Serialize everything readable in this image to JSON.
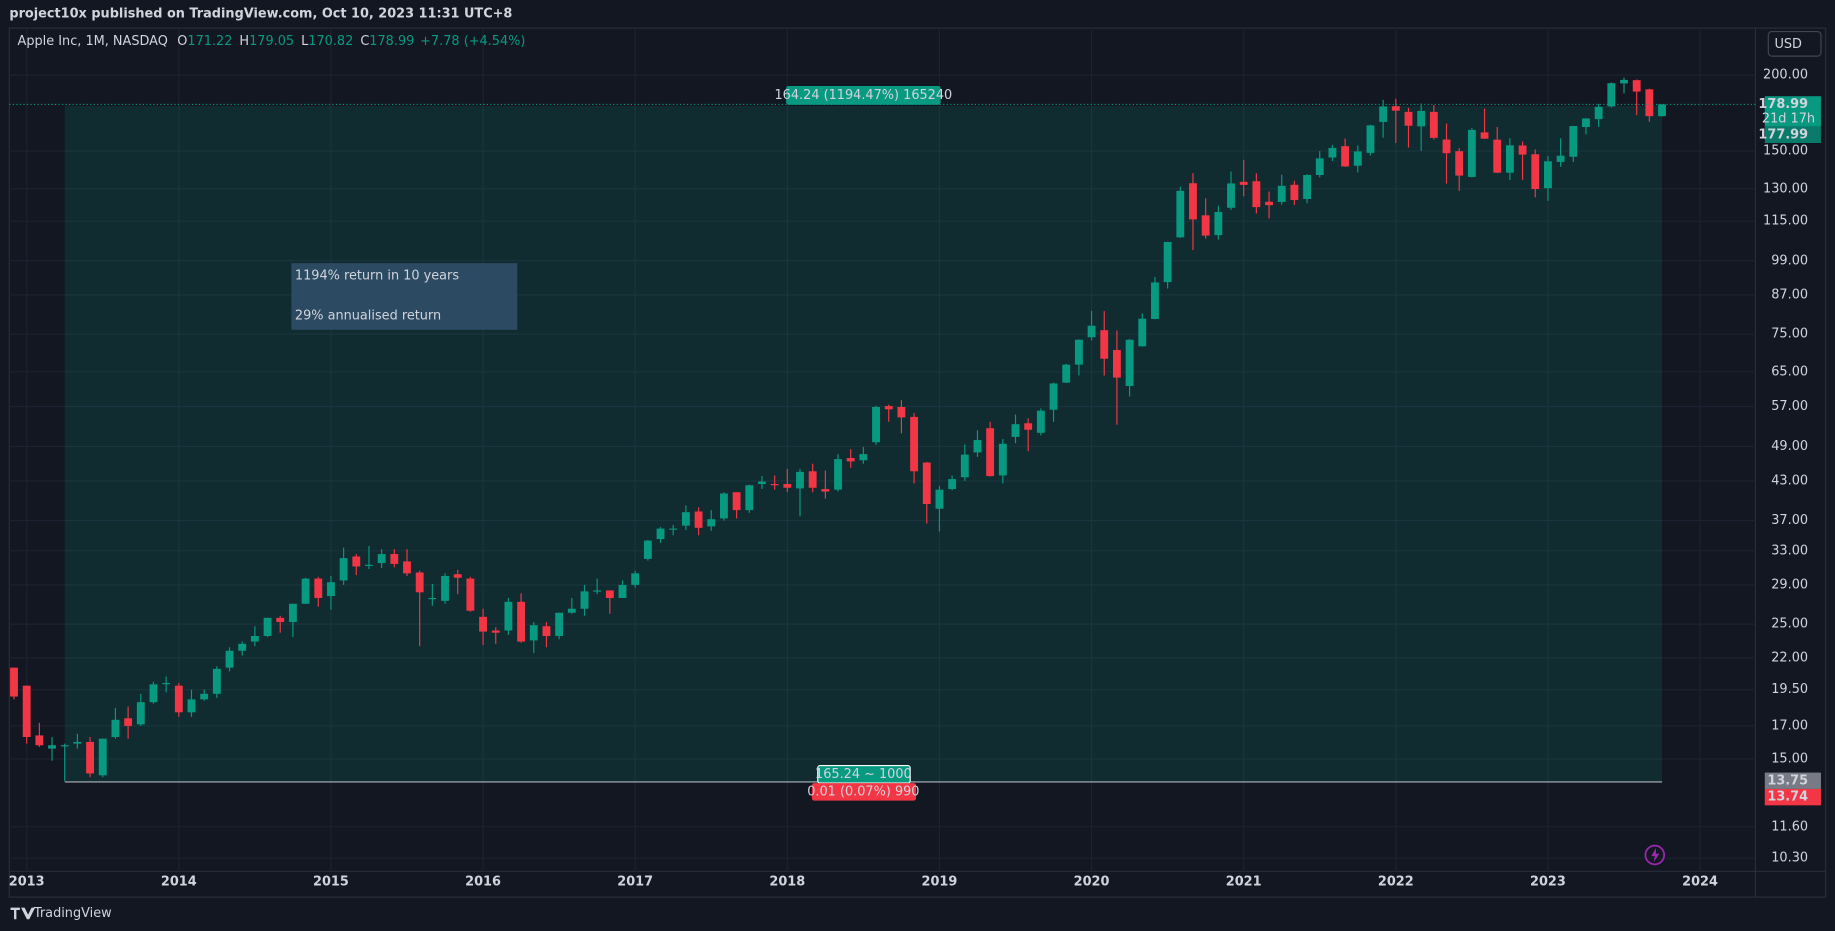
{
  "header": "project10x published on TradingView.com, Oct 10, 2023 11:31 UTC+8",
  "legend": {
    "symbol": "Apple Inc, 1M, NASDAQ",
    "o": "O",
    "h": "H",
    "l": "L",
    "c": "C",
    "change": "+7.78 (+4.54%)"
  },
  "currency": "USD",
  "countdown": "21d 17h",
  "brand": "TradingView",
  "note": [
    "1194% return in 10 years",
    "29% annualised return"
  ],
  "measure": {
    "start": "2013-04",
    "end": "2023-10",
    "low": 13.75,
    "high": 177.99,
    "label": "164.24 (1194.47%) 165240",
    "range_label": "165.24 ~ 1000"
  },
  "measure_small": {
    "low": 13.74,
    "label": "0.01 (0.07%) 990"
  },
  "chart_data": {
    "type": "candlestick",
    "log_scale": true,
    "grid": true,
    "up_color": "#089981",
    "down_color": "#f23645",
    "xlim": [
      "2012-11-20",
      "2024-05-12"
    ],
    "ylim": [
      9.8,
      239
    ],
    "xticks": [
      {
        "value": "2013-01",
        "label": "2013"
      },
      {
        "value": "2014-01",
        "label": "2014"
      },
      {
        "value": "2015-01",
        "label": "2015"
      },
      {
        "value": "2016-01",
        "label": "2016"
      },
      {
        "value": "2017-01",
        "label": "2017"
      },
      {
        "value": "2018-01",
        "label": "2018"
      },
      {
        "value": "2019-01",
        "label": "2019"
      },
      {
        "value": "2020-01",
        "label": "2020"
      },
      {
        "value": "2021-01",
        "label": "2021"
      },
      {
        "value": "2022-01",
        "label": "2022"
      },
      {
        "value": "2023-01",
        "label": "2023"
      },
      {
        "value": "2024-01",
        "label": "2024"
      }
    ],
    "yticks": [
      {
        "value": 200,
        "label": "200.00"
      },
      {
        "value": 150,
        "label": "150.00"
      },
      {
        "value": 130,
        "label": "130.00"
      },
      {
        "value": 115,
        "label": "115.00"
      },
      {
        "value": 99,
        "label": "99.00"
      },
      {
        "value": 87,
        "label": "87.00"
      },
      {
        "value": 75,
        "label": "75.00"
      },
      {
        "value": 65,
        "label": "65.00"
      },
      {
        "value": 57,
        "label": "57.00"
      },
      {
        "value": 49,
        "label": "49.00"
      },
      {
        "value": 43,
        "label": "43.00"
      },
      {
        "value": 37,
        "label": "37.00"
      },
      {
        "value": 33,
        "label": "33.00"
      },
      {
        "value": 29,
        "label": "29.00"
      },
      {
        "value": 25,
        "label": "25.00"
      },
      {
        "value": 22,
        "label": "22.00"
      },
      {
        "value": 19.5,
        "label": "19.50"
      },
      {
        "value": 17,
        "label": "17.00"
      },
      {
        "value": 15,
        "label": "15.00"
      },
      {
        "value": 11.6,
        "label": "11.60"
      },
      {
        "value": 10.3,
        "label": "10.30"
      }
    ],
    "x": [
      "2012-12",
      "2013-01",
      "2013-02",
      "2013-03",
      "2013-04",
      "2013-05",
      "2013-06",
      "2013-07",
      "2013-08",
      "2013-09",
      "2013-10",
      "2013-11",
      "2013-12",
      "2014-01",
      "2014-02",
      "2014-03",
      "2014-04",
      "2014-05",
      "2014-06",
      "2014-07",
      "2014-08",
      "2014-09",
      "2014-10",
      "2014-11",
      "2014-12",
      "2015-01",
      "2015-02",
      "2015-03",
      "2015-04",
      "2015-05",
      "2015-06",
      "2015-07",
      "2015-08",
      "2015-09",
      "2015-10",
      "2015-11",
      "2015-12",
      "2016-01",
      "2016-02",
      "2016-03",
      "2016-04",
      "2016-05",
      "2016-06",
      "2016-07",
      "2016-08",
      "2016-09",
      "2016-10",
      "2016-11",
      "2016-12",
      "2017-01",
      "2017-02",
      "2017-03",
      "2017-04",
      "2017-05",
      "2017-06",
      "2017-07",
      "2017-08",
      "2017-09",
      "2017-10",
      "2017-11",
      "2017-12",
      "2018-01",
      "2018-02",
      "2018-03",
      "2018-04",
      "2018-05",
      "2018-06",
      "2018-07",
      "2018-08",
      "2018-09",
      "2018-10",
      "2018-11",
      "2018-12",
      "2019-01",
      "2019-02",
      "2019-03",
      "2019-04",
      "2019-05",
      "2019-06",
      "2019-07",
      "2019-08",
      "2019-09",
      "2019-10",
      "2019-11",
      "2019-12",
      "2020-01",
      "2020-02",
      "2020-03",
      "2020-04",
      "2020-05",
      "2020-06",
      "2020-07",
      "2020-08",
      "2020-09",
      "2020-10",
      "2020-11",
      "2020-12",
      "2021-01",
      "2021-02",
      "2021-03",
      "2021-04",
      "2021-05",
      "2021-06",
      "2021-07",
      "2021-08",
      "2021-09",
      "2021-10",
      "2021-11",
      "2021-12",
      "2022-01",
      "2022-02",
      "2022-03",
      "2022-04",
      "2022-05",
      "2022-06",
      "2022-07",
      "2022-08",
      "2022-09",
      "2022-10",
      "2022-11",
      "2022-12",
      "2023-01",
      "2023-02",
      "2023-03",
      "2023-04",
      "2023-05",
      "2023-06",
      "2023-07",
      "2023-08",
      "2023-09",
      "2023-10"
    ],
    "open": [
      21.2,
      19.8,
      16.4,
      15.6,
      15.8,
      15.9,
      16.0,
      14.1,
      16.3,
      17.5,
      17.1,
      18.6,
      20.0,
      19.8,
      17.9,
      18.8,
      19.2,
      21.2,
      22.6,
      23.4,
      23.9,
      25.6,
      25.2,
      27.0,
      29.7,
      27.8,
      29.5,
      32.3,
      31.2,
      31.5,
      32.6,
      31.7,
      30.4,
      27.5,
      27.3,
      30.2,
      29.7,
      25.7,
      24.4,
      24.4,
      27.2,
      23.5,
      24.8,
      23.9,
      26.1,
      26.5,
      28.4,
      28.4,
      27.6,
      29.0,
      32.0,
      34.5,
      35.9,
      36.3,
      38.3,
      36.2,
      37.3,
      41.2,
      38.5,
      42.5,
      42.5,
      42.5,
      41.8,
      44.6,
      41.7,
      41.6,
      46.9,
      46.5,
      49.8,
      57.1,
      56.9,
      54.8,
      46.1,
      38.7,
      41.7,
      43.6,
      47.9,
      52.5,
      43.9,
      50.8,
      53.5,
      51.6,
      56.3,
      62.4,
      66.8,
      74.1,
      76.1,
      70.6,
      61.6,
      71.6,
      79.4,
      91.3,
      108.2,
      132.8,
      117.6,
      109.1,
      121.0,
      133.5,
      133.8,
      123.8,
      123.7,
      132.0,
      125.1,
      137.0,
      146.4,
      152.8,
      141.9,
      148.99,
      167.5,
      177.8,
      174.0,
      164.7,
      174.0,
      156.7,
      149.9,
      136.0,
      161.0,
      156.6,
      138.2,
      153.2,
      148.2,
      130.3,
      143.97,
      146.8,
      164.3,
      169.3,
      177.7,
      193.8,
      196.2,
      189.5,
      171.22
    ],
    "high": [
      21.2,
      19.8,
      17.2,
      16.3,
      15.9,
      16.5,
      16.3,
      16.2,
      18.2,
      18.3,
      19.2,
      20.1,
      20.5,
      20.0,
      19.5,
      19.5,
      21.3,
      22.9,
      23.4,
      24.8,
      25.6,
      25.8,
      27.0,
      29.8,
      29.9,
      30.0,
      33.4,
      32.6,
      33.6,
      33.2,
      33.2,
      33.2,
      30.6,
      29.1,
      30.3,
      30.7,
      29.9,
      26.5,
      24.7,
      27.6,
      28.1,
      25.2,
      25.2,
      26.1,
      27.6,
      29.0,
      29.7,
      28.4,
      29.5,
      30.6,
      34.4,
      36.1,
      36.4,
      39.2,
      38.9,
      38.5,
      41.2,
      41.2,
      42.4,
      43.8,
      43.9,
      45.0,
      45.0,
      45.9,
      44.7,
      47.6,
      48.5,
      48.9,
      57.2,
      57.4,
      58.4,
      55.6,
      46.2,
      42.2,
      43.9,
      49.4,
      52.1,
      53.8,
      50.4,
      55.3,
      54.5,
      56.6,
      62.4,
      67.0,
      73.5,
      81.9,
      81.8,
      76.0,
      73.6,
      81.1,
      93.1,
      106.4,
      131.0,
      137.98,
      125.4,
      121.99,
      138.8,
      145.1,
      137.9,
      128.7,
      137.1,
      134.1,
      137.4,
      150.0,
      153.5,
      157.3,
      153.2,
      165.7,
      182.1,
      182.9,
      176.7,
      179.6,
      178.5,
      166.5,
      151.7,
      163.6,
      176.2,
      164.3,
      157.5,
      155.5,
      150.9,
      147.2,
      157.4,
      165.0,
      169.9,
      179.4,
      194.5,
      198.2,
      196.7,
      189.98,
      179.05
    ],
    "low": [
      18.8,
      15.9,
      15.7,
      14.9,
      13.8,
      15.6,
      14.0,
      14.0,
      16.2,
      16.2,
      17.0,
      18.5,
      19.3,
      17.6,
      17.6,
      18.7,
      18.9,
      20.9,
      22.2,
      23.0,
      23.8,
      24.2,
      23.8,
      27.0,
      26.7,
      26.4,
      29.0,
      30.1,
      30.8,
      30.9,
      31.0,
      30.0,
      23.0,
      26.8,
      27.0,
      28.0,
      26.2,
      23.1,
      23.2,
      24.0,
      23.3,
      22.4,
      22.9,
      23.6,
      26.0,
      25.8,
      28.0,
      26.0,
      27.6,
      28.7,
      31.8,
      34.0,
      35.0,
      35.7,
      35.0,
      35.6,
      37.0,
      37.3,
      38.1,
      41.7,
      41.6,
      41.2,
      37.6,
      41.2,
      40.2,
      41.3,
      45.2,
      45.9,
      49.3,
      53.8,
      51.5,
      42.6,
      36.6,
      35.5,
      41.5,
      43.0,
      47.1,
      43.7,
      42.6,
      49.6,
      48.1,
      51.1,
      53.8,
      62.3,
      64.1,
      73.2,
      64.1,
      53.2,
      59.2,
      71.5,
      79.3,
      89.1,
      107.9,
      103.1,
      107.7,
      107.3,
      120.0,
      126.4,
      118.4,
      116.2,
      122.5,
      122.3,
      123.1,
      135.8,
      144.5,
      141.3,
      138.3,
      147.5,
      157.8,
      154.7,
      152.0,
      150.1,
      156.7,
      132.6,
      129.0,
      135.7,
      157.1,
      138.0,
      134.4,
      134.4,
      125.9,
      124.2,
      141.3,
      143.9,
      159.8,
      164.3,
      176.9,
      186.6,
      171.96,
      167.6,
      170.82
    ],
    "close": [
      19.0,
      16.3,
      15.8,
      15.8,
      15.8,
      16.0,
      14.2,
      16.2,
      17.4,
      17.0,
      18.6,
      19.9,
      20.0,
      17.9,
      18.8,
      19.2,
      21.1,
      22.6,
      23.2,
      23.9,
      25.6,
      25.2,
      27.0,
      29.7,
      27.6,
      29.3,
      32.1,
      31.1,
      31.3,
      32.6,
      31.4,
      30.3,
      28.2,
      27.6,
      30.0,
      29.8,
      26.3,
      24.3,
      24.2,
      27.2,
      23.4,
      24.9,
      23.9,
      26.1,
      26.5,
      28.3,
      28.4,
      27.6,
      29.0,
      30.3,
      34.3,
      35.9,
      35.9,
      38.2,
      36.0,
      37.2,
      41.0,
      38.5,
      42.3,
      42.9,
      42.3,
      41.9,
      44.5,
      41.9,
      41.3,
      46.7,
      46.3,
      47.6,
      56.9,
      56.4,
      54.7,
      44.6,
      39.4,
      41.6,
      43.3,
      47.5,
      50.2,
      43.8,
      49.5,
      53.3,
      52.2,
      56.1,
      62.2,
      66.8,
      73.4,
      77.4,
      68.3,
      63.6,
      73.4,
      79.5,
      91.2,
      106.3,
      129.0,
      115.8,
      108.9,
      119.1,
      132.7,
      131.96,
      121.3,
      122.2,
      131.5,
      124.6,
      137.0,
      145.9,
      151.8,
      141.5,
      149.8,
      165.3,
      177.6,
      174.8,
      165.1,
      174.6,
      157.7,
      148.8,
      136.7,
      162.5,
      157.2,
      138.2,
      153.3,
      148.0,
      129.9,
      144.3,
      147.4,
      164.9,
      169.7,
      177.3,
      193.97,
      196.4,
      187.9,
      171.2,
      178.99
    ]
  }
}
